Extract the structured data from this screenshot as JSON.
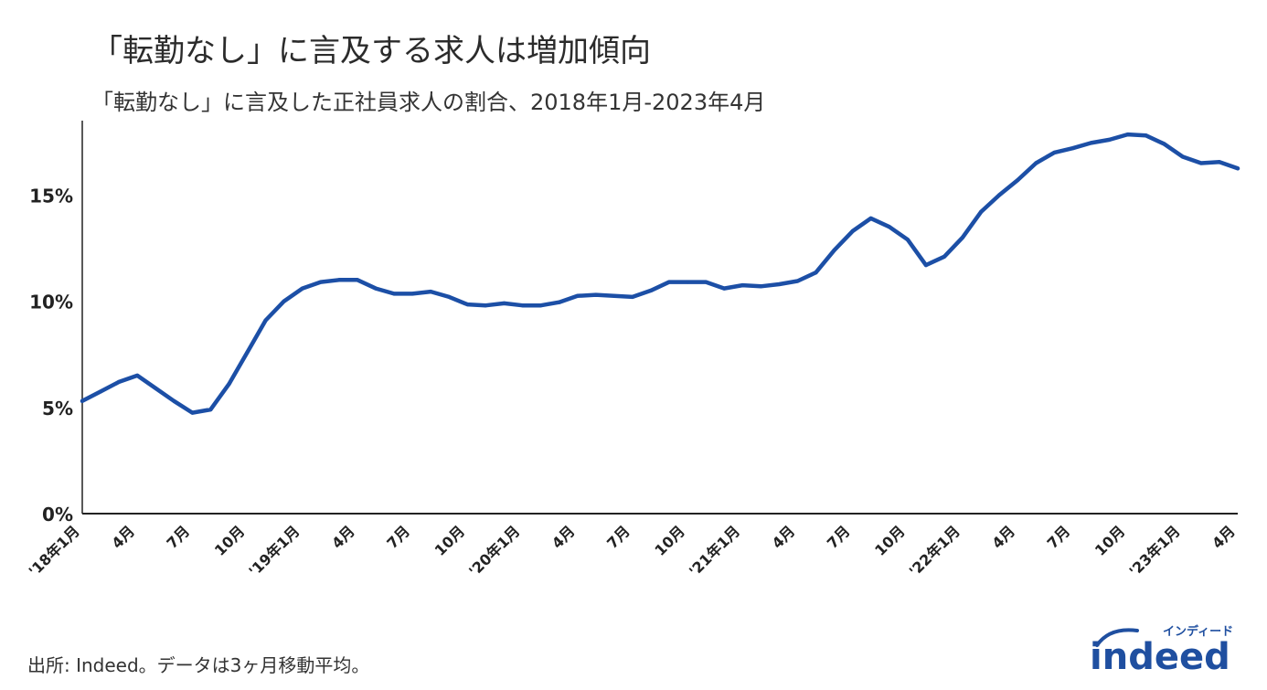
{
  "title": "「転勤なし」に言及する求人は増加傾向",
  "subtitle": "「転勤なし」に言及した正社員求人の割合、2018年1月-2023年4月",
  "source": "出所: Indeed。データは3ヶ月移動平均。",
  "logo": {
    "wordmark": "indeed",
    "kana": "インディード",
    "color": "#1f4fa0"
  },
  "colors": {
    "line": "#1c4fa6",
    "axis": "#222222"
  },
  "chart_data": {
    "type": "line",
    "ylim": [
      0,
      18.5
    ],
    "yticks": [
      0,
      5,
      10,
      15
    ],
    "ytick_labels": [
      "0%",
      "5%",
      "10%",
      "15%"
    ],
    "tick_labels": [
      {
        "i": 0,
        "label": "'18年1月"
      },
      {
        "i": 3,
        "label": "4月"
      },
      {
        "i": 6,
        "label": "7月"
      },
      {
        "i": 9,
        "label": "10月"
      },
      {
        "i": 12,
        "label": "'19年1月"
      },
      {
        "i": 15,
        "label": "4月"
      },
      {
        "i": 18,
        "label": "7月"
      },
      {
        "i": 21,
        "label": "10月"
      },
      {
        "i": 24,
        "label": "'20年1月"
      },
      {
        "i": 27,
        "label": "4月"
      },
      {
        "i": 30,
        "label": "7月"
      },
      {
        "i": 33,
        "label": "10月"
      },
      {
        "i": 36,
        "label": "'21年1月"
      },
      {
        "i": 39,
        "label": "4月"
      },
      {
        "i": 42,
        "label": "7月"
      },
      {
        "i": 45,
        "label": "10月"
      },
      {
        "i": 48,
        "label": "'22年1月"
      },
      {
        "i": 51,
        "label": "4月"
      },
      {
        "i": 54,
        "label": "7月"
      },
      {
        "i": 57,
        "label": "10月"
      },
      {
        "i": 60,
        "label": "'23年1月"
      },
      {
        "i": 63,
        "label": "4月"
      }
    ],
    "series": [
      {
        "values": [
          5.3,
          5.75,
          6.2,
          6.5,
          5.9,
          5.3,
          4.75,
          4.9,
          6.1,
          7.6,
          9.1,
          10.0,
          10.6,
          10.9,
          11.0,
          11.0,
          10.6,
          10.35,
          10.35,
          10.45,
          10.2,
          9.85,
          9.8,
          9.9,
          9.8,
          9.8,
          9.95,
          10.25,
          10.3,
          10.25,
          10.2,
          10.5,
          10.9,
          10.9,
          10.9,
          10.6,
          10.75,
          10.7,
          10.8,
          10.95,
          11.35,
          12.4,
          13.3,
          13.9,
          13.5,
          12.9,
          11.7,
          12.1,
          13.0,
          14.2,
          15.0,
          15.7,
          16.5,
          17.0,
          17.2,
          17.45,
          17.6,
          17.85,
          17.8,
          17.4,
          16.8,
          16.5,
          16.55,
          16.25
        ]
      }
    ]
  }
}
